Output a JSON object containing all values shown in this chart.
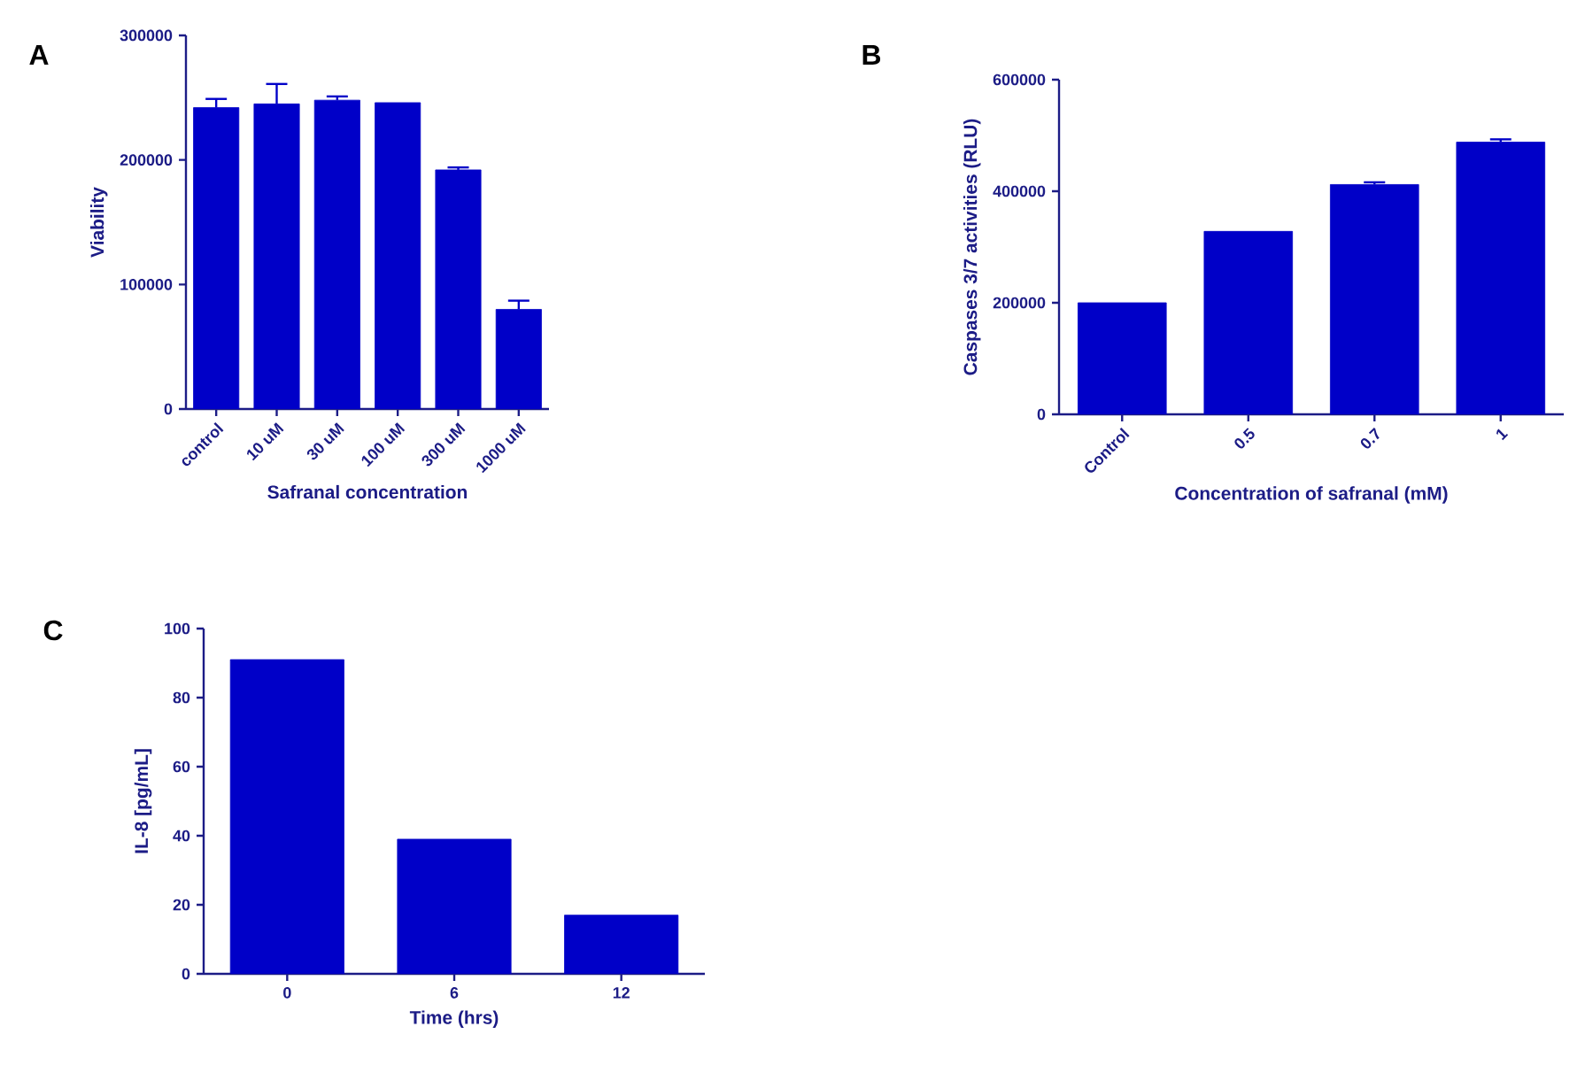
{
  "chart_data": [
    {
      "type": "bar",
      "title": "A",
      "xlabel": "Safranal concentration",
      "ylabel": "Viability",
      "categories": [
        "control",
        "10 uM",
        "30 uM",
        "100 uM",
        "300 uM",
        "1000 uM"
      ],
      "values": [
        242000,
        245000,
        248000,
        246000,
        192000,
        80000
      ],
      "errors": [
        7000,
        16000,
        3000,
        null,
        2000,
        7000
      ],
      "color": "#0000c8",
      "ylim": [
        0,
        300000
      ],
      "yticks": [
        0,
        100000,
        200000,
        300000
      ]
    },
    {
      "type": "bar",
      "title": "B",
      "xlabel": "Concentration of safranal (mM)",
      "ylabel": "Caspases 3/7 activities (RLU)",
      "categories": [
        "Control",
        "0.5",
        "0.7",
        "1"
      ],
      "values": [
        200000,
        328000,
        412000,
        488000
      ],
      "errors": [
        null,
        null,
        4000,
        5000
      ],
      "color": "#0000c8",
      "ylim": [
        0,
        600000
      ],
      "yticks": [
        0,
        200000,
        400000,
        600000
      ]
    },
    {
      "type": "bar",
      "title": "C",
      "xlabel": "Time (hrs)",
      "ylabel": "IL-8 [pg/mL]",
      "categories": [
        "0",
        "6",
        "12"
      ],
      "values": [
        91,
        39,
        17
      ],
      "color": "#0000c8",
      "ylim": [
        0,
        100
      ],
      "yticks": [
        0,
        20,
        40,
        60,
        80,
        100
      ]
    }
  ]
}
